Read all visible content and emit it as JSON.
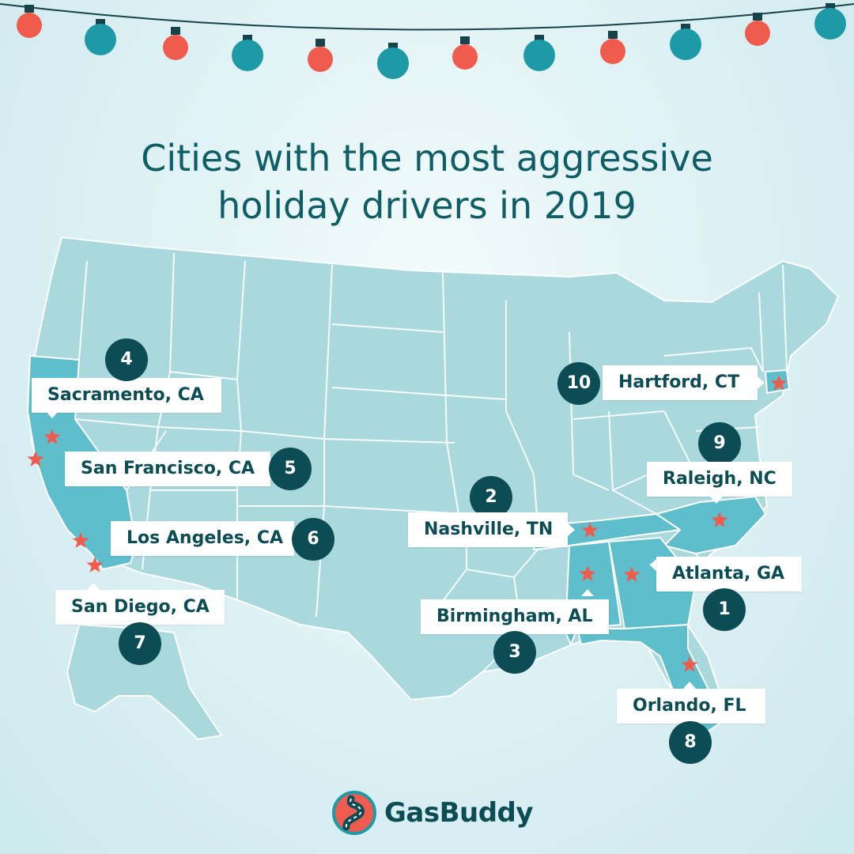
{
  "title_line1": "Cities with the most aggressive",
  "title_line2": "holiday drivers in 2019",
  "brand": "GasBuddy",
  "colors": {
    "background": "#dbf0f3",
    "map_land": "#a9d8dd",
    "map_highlight": "#5fbecb",
    "state_border": "#ffffff",
    "badge": "#0c4d55",
    "star": "#ef5b4c",
    "bulb_red": "#ef5b4c",
    "bulb_teal": "#1d9aa6",
    "title_text": "#0f5e66"
  },
  "highlighted_states": [
    "California",
    "Tennessee",
    "North Carolina",
    "Alabama",
    "Georgia",
    "Florida",
    "Connecticut"
  ],
  "cities": [
    {
      "rank": "1",
      "name": "Atlanta, GA"
    },
    {
      "rank": "2",
      "name": "Nashville, TN"
    },
    {
      "rank": "3",
      "name": "Birmingham, AL"
    },
    {
      "rank": "4",
      "name": "Sacramento, CA"
    },
    {
      "rank": "5",
      "name": "San Francisco, CA"
    },
    {
      "rank": "6",
      "name": "Los Angeles, CA"
    },
    {
      "rank": "7",
      "name": "San Diego, CA"
    },
    {
      "rank": "8",
      "name": "Orlando, FL"
    },
    {
      "rank": "9",
      "name": "Raleigh, NC"
    },
    {
      "rank": "10",
      "name": "Hartford, CT"
    }
  ],
  "icons": {
    "string_lights": "christmas-lights-icon",
    "marker": "star-icon",
    "logo": "gasbuddy-road-icon"
  }
}
